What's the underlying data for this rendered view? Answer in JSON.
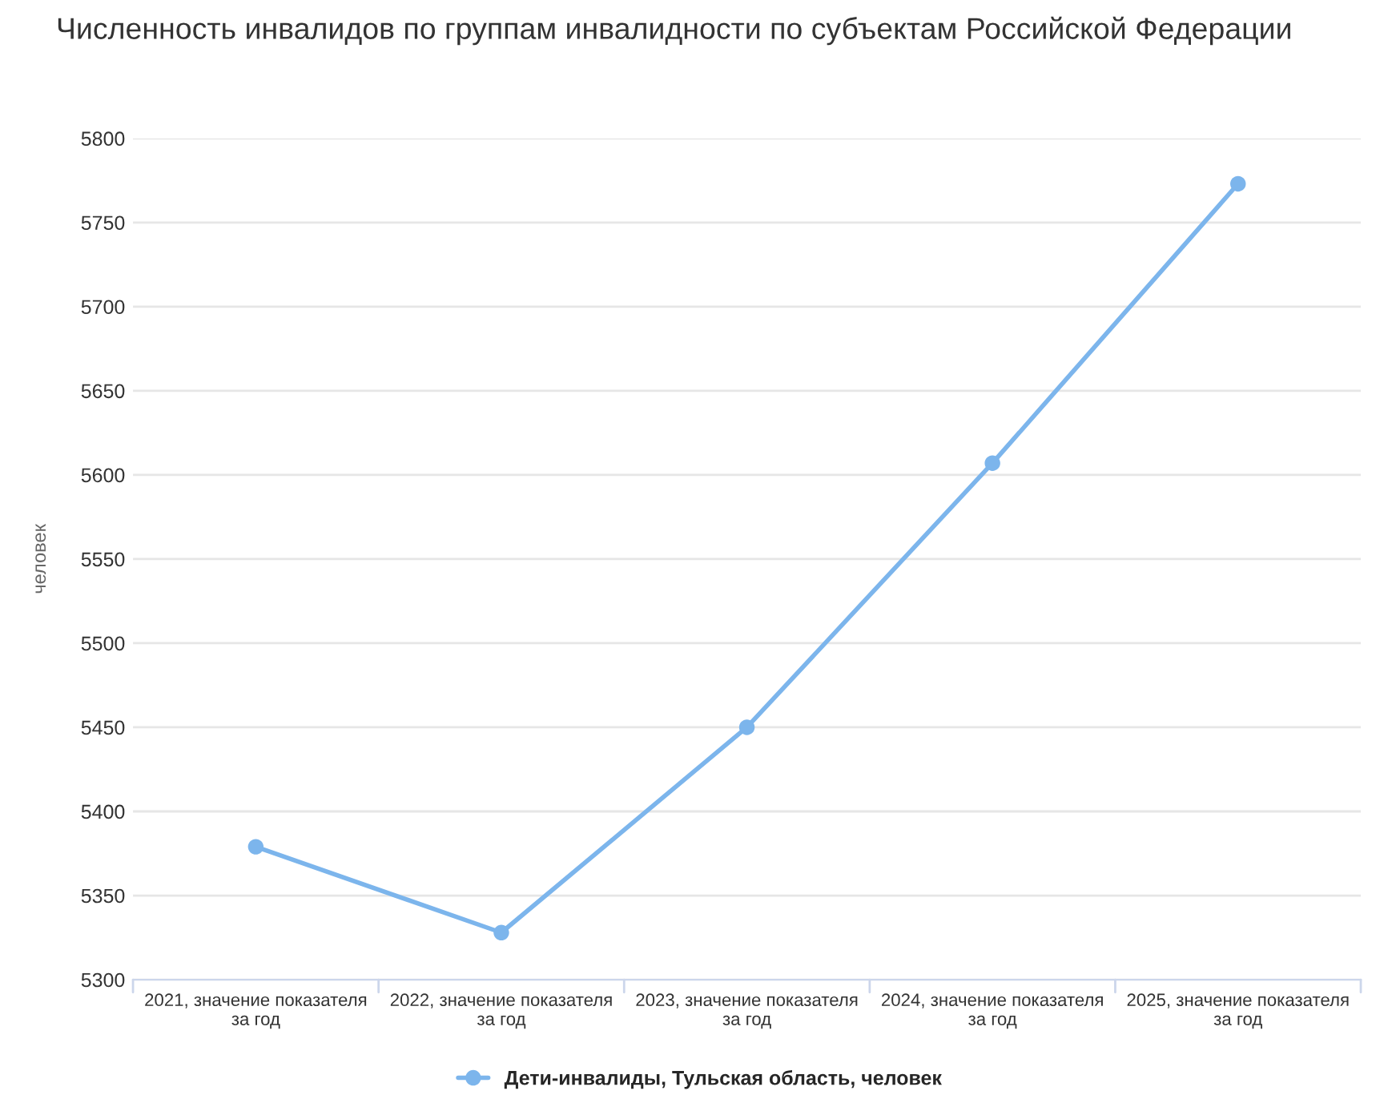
{
  "chart_data": {
    "type": "line",
    "title": "Численность инвалидов по группам инвалидности по субъектам Российской Федерации",
    "ylabel": "человек",
    "categories": [
      "2021, значение показателя\nза год",
      "2022, значение показателя\nза год",
      "2023, значение показателя\nза год",
      "2024, значение показателя\nза год",
      "2025, значение показателя\nза год"
    ],
    "series": [
      {
        "name": "Дети-инвалиды, Тульская область, человек",
        "color": "#7cb5ec",
        "values": [
          5379,
          5328,
          5450,
          5607,
          5773
        ]
      }
    ],
    "ylim": [
      5300,
      5800
    ],
    "yticks": [
      5300,
      5350,
      5400,
      5450,
      5500,
      5550,
      5600,
      5650,
      5700,
      5750,
      5800
    ],
    "grid": "y",
    "legend": "bottom",
    "marker": "circle",
    "line_style": "solid"
  }
}
